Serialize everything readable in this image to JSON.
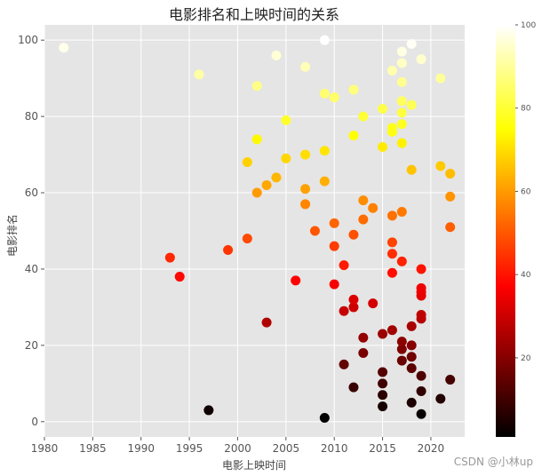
{
  "chart_data": {
    "type": "scatter",
    "title": "电影排名和上映时间的关系",
    "xlabel": "电影上映时间",
    "ylabel": "电影排名",
    "xlim": [
      1980,
      2023.5
    ],
    "ylim": [
      -4,
      104
    ],
    "xticks": [
      1980,
      1985,
      1990,
      1995,
      2000,
      2005,
      2010,
      2015,
      2020
    ],
    "yticks": [
      0,
      20,
      40,
      60,
      80,
      100
    ],
    "grid": true,
    "colormap": "hot",
    "colorbar": {
      "min": 1,
      "max": 100,
      "ticks": [
        20,
        40,
        60,
        80,
        100
      ]
    },
    "points": [
      {
        "x": 1982,
        "y": 98
      },
      {
        "x": 1993,
        "y": 43
      },
      {
        "x": 1994,
        "y": 38
      },
      {
        "x": 1996,
        "y": 91
      },
      {
        "x": 1997,
        "y": 3
      },
      {
        "x": 1999,
        "y": 45
      },
      {
        "x": 2001,
        "y": 48
      },
      {
        "x": 2001,
        "y": 68
      },
      {
        "x": 2002,
        "y": 60
      },
      {
        "x": 2002,
        "y": 74
      },
      {
        "x": 2002,
        "y": 88
      },
      {
        "x": 2003,
        "y": 26
      },
      {
        "x": 2003,
        "y": 62
      },
      {
        "x": 2004,
        "y": 64
      },
      {
        "x": 2004,
        "y": 96
      },
      {
        "x": 2005,
        "y": 69
      },
      {
        "x": 2005,
        "y": 79
      },
      {
        "x": 2006,
        "y": 37
      },
      {
        "x": 2007,
        "y": 57
      },
      {
        "x": 2007,
        "y": 61
      },
      {
        "x": 2007,
        "y": 70
      },
      {
        "x": 2007,
        "y": 93
      },
      {
        "x": 2008,
        "y": 50
      },
      {
        "x": 2009,
        "y": 1
      },
      {
        "x": 2009,
        "y": 63
      },
      {
        "x": 2009,
        "y": 71
      },
      {
        "x": 2009,
        "y": 86
      },
      {
        "x": 2009,
        "y": 100
      },
      {
        "x": 2010,
        "y": 36
      },
      {
        "x": 2010,
        "y": 46
      },
      {
        "x": 2010,
        "y": 52
      },
      {
        "x": 2010,
        "y": 85
      },
      {
        "x": 2011,
        "y": 15
      },
      {
        "x": 2011,
        "y": 29
      },
      {
        "x": 2011,
        "y": 41
      },
      {
        "x": 2012,
        "y": 9
      },
      {
        "x": 2012,
        "y": 30
      },
      {
        "x": 2012,
        "y": 32
      },
      {
        "x": 2012,
        "y": 49
      },
      {
        "x": 2012,
        "y": 75
      },
      {
        "x": 2012,
        "y": 87
      },
      {
        "x": 2013,
        "y": 18
      },
      {
        "x": 2013,
        "y": 22
      },
      {
        "x": 2013,
        "y": 53
      },
      {
        "x": 2013,
        "y": 58
      },
      {
        "x": 2013,
        "y": 80
      },
      {
        "x": 2014,
        "y": 31
      },
      {
        "x": 2014,
        "y": 56
      },
      {
        "x": 2015,
        "y": 4
      },
      {
        "x": 2015,
        "y": 7
      },
      {
        "x": 2015,
        "y": 10
      },
      {
        "x": 2015,
        "y": 13
      },
      {
        "x": 2015,
        "y": 23
      },
      {
        "x": 2015,
        "y": 72
      },
      {
        "x": 2015,
        "y": 82
      },
      {
        "x": 2016,
        "y": 24
      },
      {
        "x": 2016,
        "y": 39
      },
      {
        "x": 2016,
        "y": 44
      },
      {
        "x": 2016,
        "y": 47
      },
      {
        "x": 2016,
        "y": 54
      },
      {
        "x": 2016,
        "y": 76
      },
      {
        "x": 2016,
        "y": 77
      },
      {
        "x": 2016,
        "y": 92
      },
      {
        "x": 2017,
        "y": 16
      },
      {
        "x": 2017,
        "y": 19
      },
      {
        "x": 2017,
        "y": 21
      },
      {
        "x": 2017,
        "y": 42
      },
      {
        "x": 2017,
        "y": 55
      },
      {
        "x": 2017,
        "y": 73
      },
      {
        "x": 2017,
        "y": 78
      },
      {
        "x": 2017,
        "y": 81
      },
      {
        "x": 2017,
        "y": 84
      },
      {
        "x": 2017,
        "y": 89
      },
      {
        "x": 2017,
        "y": 94
      },
      {
        "x": 2017,
        "y": 97
      },
      {
        "x": 2018,
        "y": 5
      },
      {
        "x": 2018,
        "y": 14
      },
      {
        "x": 2018,
        "y": 17
      },
      {
        "x": 2018,
        "y": 20
      },
      {
        "x": 2018,
        "y": 25
      },
      {
        "x": 2018,
        "y": 66
      },
      {
        "x": 2018,
        "y": 83
      },
      {
        "x": 2018,
        "y": 99
      },
      {
        "x": 2019,
        "y": 2
      },
      {
        "x": 2019,
        "y": 8
      },
      {
        "x": 2019,
        "y": 12
      },
      {
        "x": 2019,
        "y": 27
      },
      {
        "x": 2019,
        "y": 28
      },
      {
        "x": 2019,
        "y": 33
      },
      {
        "x": 2019,
        "y": 34
      },
      {
        "x": 2019,
        "y": 35
      },
      {
        "x": 2019,
        "y": 40
      },
      {
        "x": 2019,
        "y": 95
      },
      {
        "x": 2021,
        "y": 6
      },
      {
        "x": 2021,
        "y": 67
      },
      {
        "x": 2021,
        "y": 90
      },
      {
        "x": 2022,
        "y": 11
      },
      {
        "x": 2022,
        "y": 51
      },
      {
        "x": 2022,
        "y": 59
      },
      {
        "x": 2022,
        "y": 65
      }
    ]
  },
  "watermark": "CSDN @小林up"
}
